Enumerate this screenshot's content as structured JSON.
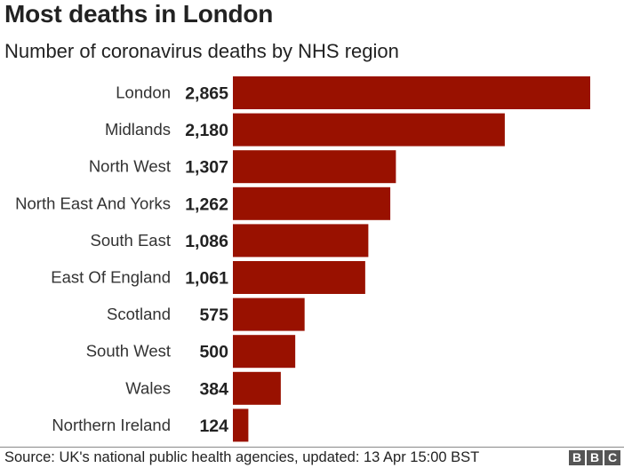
{
  "title": "Most deaths in London",
  "subtitle": "Number of coronavirus deaths by NHS region",
  "source": "Source: UK's national public health agencies, updated: 13 Apr 15:00 BST",
  "logo": [
    "B",
    "B",
    "C"
  ],
  "colors": {
    "bar": "#991100",
    "logo_box": "#555555"
  },
  "chart_data": {
    "type": "bar",
    "orientation": "horizontal",
    "title": "Most deaths in London",
    "subtitle": "Number of coronavirus deaths by NHS region",
    "categories": [
      "London",
      "Midlands",
      "North West",
      "North East And Yorks",
      "South East",
      "East Of England",
      "Scotland",
      "South West",
      "Wales",
      "Northern Ireland"
    ],
    "values": [
      2865,
      2180,
      1307,
      1262,
      1086,
      1061,
      575,
      500,
      384,
      124
    ],
    "value_labels": [
      "2,865",
      "2,180",
      "1,307",
      "1,262",
      "1,086",
      "1,061",
      "575",
      "500",
      "384",
      "124"
    ],
    "xlim": [
      0,
      2865
    ],
    "grid": false,
    "legend": "none"
  }
}
